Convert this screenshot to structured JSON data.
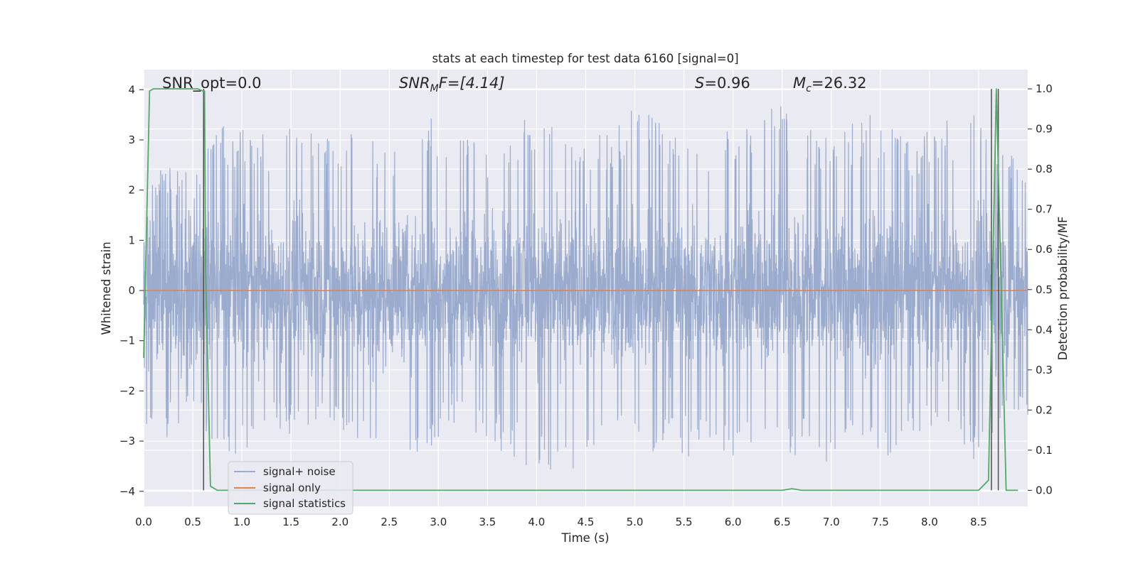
{
  "chart_data": {
    "type": "line",
    "title": "stats at each timestep for test data 6160 [signal=0]",
    "xlabel": "Time (s)",
    "ylabel": "Whitened strain",
    "y2label": "Detection probability/MF",
    "xlim": [
      0.0,
      9.0
    ],
    "ylim": [
      -4.3,
      4.4
    ],
    "y2lim": [
      -0.04,
      1.048
    ],
    "x_ticks": [
      "0.0",
      "0.5",
      "1.0",
      "1.5",
      "2.0",
      "2.5",
      "3.0",
      "3.5",
      "4.0",
      "4.5",
      "5.0",
      "5.5",
      "6.0",
      "6.5",
      "7.0",
      "7.5",
      "8.0",
      "8.5"
    ],
    "y_ticks": [
      "4",
      "3",
      "2",
      "1",
      "0",
      "−1",
      "−2",
      "−3",
      "−4"
    ],
    "y2_ticks": [
      "1.0",
      "0.9",
      "0.8",
      "0.7",
      "0.6",
      "0.5",
      "0.4",
      "0.3",
      "0.2",
      "0.1",
      "0.0"
    ],
    "grid": true,
    "legend_position": "lower-left",
    "annotations": {
      "snr_opt": "SNR_opt=0.0",
      "snr_mf_sym": "SNR",
      "snr_mf_sub": "M",
      "snr_mf_rest": "F=[4.14]",
      "s_sym": "S",
      "s_rest": "=0.96",
      "mc_sym": "M",
      "mc_sub": "c",
      "mc_rest": "=26.32"
    },
    "series": [
      {
        "name": "signal+ noise",
        "axis": "left",
        "color": "#9aabce",
        "envelope_upper": [
          [
            0.0,
            2.4
          ],
          [
            0.25,
            2.5
          ],
          [
            0.5,
            2.3
          ],
          [
            0.8,
            3.35
          ],
          [
            1.2,
            3.1
          ],
          [
            1.7,
            3.3
          ],
          [
            2.1,
            3.2
          ],
          [
            2.6,
            2.8
          ],
          [
            2.85,
            3.6
          ],
          [
            3.0,
            3.3
          ],
          [
            3.5,
            2.9
          ],
          [
            3.9,
            3.6
          ],
          [
            4.3,
            3.1
          ],
          [
            4.8,
            3.2
          ],
          [
            5.05,
            3.85
          ],
          [
            5.3,
            3.3
          ],
          [
            5.6,
            2.8
          ],
          [
            5.85,
            3.3
          ],
          [
            6.2,
            3.2
          ],
          [
            6.4,
            4.0
          ],
          [
            6.7,
            3.3
          ],
          [
            7.0,
            3.1
          ],
          [
            7.4,
            3.5
          ],
          [
            7.8,
            3.0
          ],
          [
            8.2,
            3.4
          ],
          [
            8.5,
            3.5
          ],
          [
            8.68,
            3.1
          ],
          [
            8.9,
            2.8
          ]
        ],
        "envelope_lower": [
          [
            0.0,
            -2.5
          ],
          [
            0.15,
            -3.3
          ],
          [
            0.5,
            -2.3
          ],
          [
            0.8,
            -3.45
          ],
          [
            1.2,
            -3.0
          ],
          [
            1.8,
            -2.8
          ],
          [
            2.0,
            -3.0
          ],
          [
            2.4,
            -3.2
          ],
          [
            2.85,
            -3.3
          ],
          [
            3.1,
            -2.7
          ],
          [
            3.6,
            -3.2
          ],
          [
            3.9,
            -3.6
          ],
          [
            4.36,
            -3.95
          ],
          [
            4.7,
            -2.8
          ],
          [
            5.0,
            -3.3
          ],
          [
            5.5,
            -3.3
          ],
          [
            5.9,
            -3.4
          ],
          [
            6.3,
            -3.0
          ],
          [
            6.7,
            -3.35
          ],
          [
            6.9,
            -3.6
          ],
          [
            7.3,
            -2.9
          ],
          [
            7.5,
            -3.4
          ],
          [
            8.0,
            -2.7
          ],
          [
            8.5,
            -3.5
          ],
          [
            8.7,
            -2.8
          ],
          [
            8.9,
            -2.7
          ]
        ],
        "typical_band": [
          -1.55,
          1.6
        ]
      },
      {
        "name": "signal only",
        "axis": "left",
        "color": "#dd8452",
        "x": [
          0.0,
          9.0
        ],
        "y": [
          0.0,
          0.0
        ]
      },
      {
        "name": "signal statistics",
        "axis": "right",
        "color": "#55a868",
        "x": [
          0.0,
          0.06,
          0.1,
          0.15,
          0.55,
          0.6,
          0.62,
          0.63,
          0.68,
          0.75,
          6.5,
          6.6,
          6.7,
          8.5,
          8.6,
          8.68,
          8.75,
          8.78,
          8.85,
          8.9
        ],
        "y": [
          0.33,
          0.995,
          1.0,
          1.0,
          1.0,
          0.995,
          0.995,
          0.56,
          0.01,
          0.0,
          0.0,
          0.004,
          0.0,
          0.0,
          0.025,
          1.0,
          0.3,
          0.0,
          0.0,
          0.0
        ]
      }
    ],
    "vertical_lines": [
      0.61,
      8.63,
      8.7
    ],
    "vertical_line_color": "#505050"
  }
}
